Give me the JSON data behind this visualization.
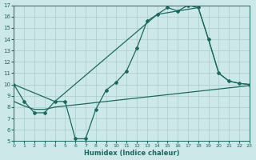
{
  "bg_color": "#cce8e8",
  "grid_color": "#aacccc",
  "line_color": "#1a6a60",
  "xlabel": "Humidex (Indice chaleur)",
  "xlim": [
    0,
    23
  ],
  "ylim": [
    5,
    17
  ],
  "xticks": [
    0,
    1,
    2,
    3,
    4,
    5,
    6,
    7,
    8,
    9,
    10,
    11,
    12,
    13,
    14,
    15,
    16,
    17,
    18,
    19,
    20,
    21,
    22,
    23
  ],
  "yticks": [
    5,
    6,
    7,
    8,
    9,
    10,
    11,
    12,
    13,
    14,
    15,
    16,
    17
  ],
  "curve1_x": [
    0,
    1,
    2,
    3,
    4,
    5,
    6,
    7,
    8,
    9,
    10,
    11,
    12,
    13,
    14,
    15,
    16,
    17,
    18,
    19,
    20,
    21,
    22,
    23
  ],
  "curve1_y": [
    10,
    8.5,
    7.5,
    7.5,
    8.5,
    8.5,
    5.2,
    5.2,
    7.8,
    9.5,
    10.2,
    11.2,
    13.2,
    15.6,
    16.2,
    16.8,
    16.5,
    17.0,
    16.8,
    14.0,
    11.0,
    10.3,
    10.1,
    10.0
  ],
  "line2_x": [
    0,
    1,
    2,
    3,
    4,
    5,
    6,
    7,
    8,
    9,
    10,
    11,
    12,
    13,
    14,
    15,
    16,
    17,
    18,
    19,
    20,
    21,
    22,
    23
  ],
  "line2_y": [
    8.5,
    8.1,
    7.8,
    7.8,
    8.0,
    8.1,
    8.2,
    8.3,
    8.4,
    8.5,
    8.6,
    8.7,
    8.8,
    8.9,
    9.0,
    9.1,
    9.2,
    9.3,
    9.4,
    9.5,
    9.6,
    9.7,
    9.8,
    9.9
  ],
  "line3_x": [
    0,
    4,
    14,
    18,
    19,
    20,
    21,
    22,
    23
  ],
  "line3_y": [
    10,
    8.5,
    16.2,
    16.8,
    14.0,
    11.0,
    10.3,
    10.1,
    10.0
  ]
}
